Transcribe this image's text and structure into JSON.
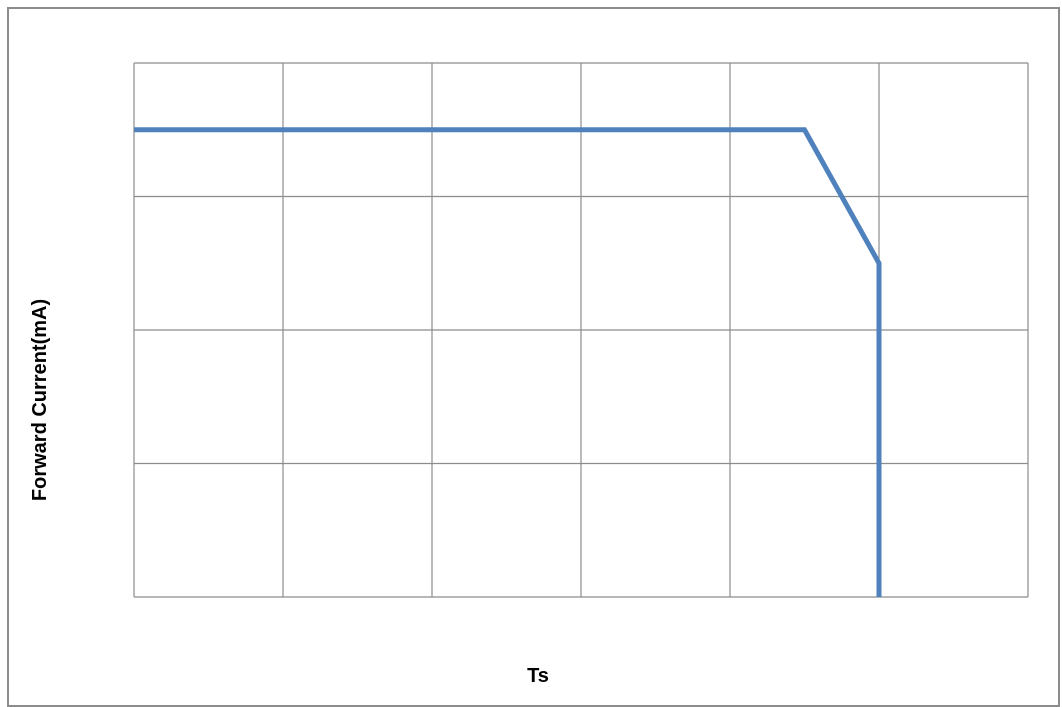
{
  "chart_data": {
    "type": "line",
    "title": "",
    "xlabel": "Ts",
    "ylabel": "Forward Current(mA)",
    "grid": true,
    "xlim": [
      0,
      6
    ],
    "ylim": [
      0,
      4
    ],
    "series": [
      {
        "color": "#4f81bd",
        "x": [
          0,
          4.5,
          5,
          5
        ],
        "y": [
          3.5,
          3.5,
          2.5,
          0
        ]
      }
    ]
  }
}
